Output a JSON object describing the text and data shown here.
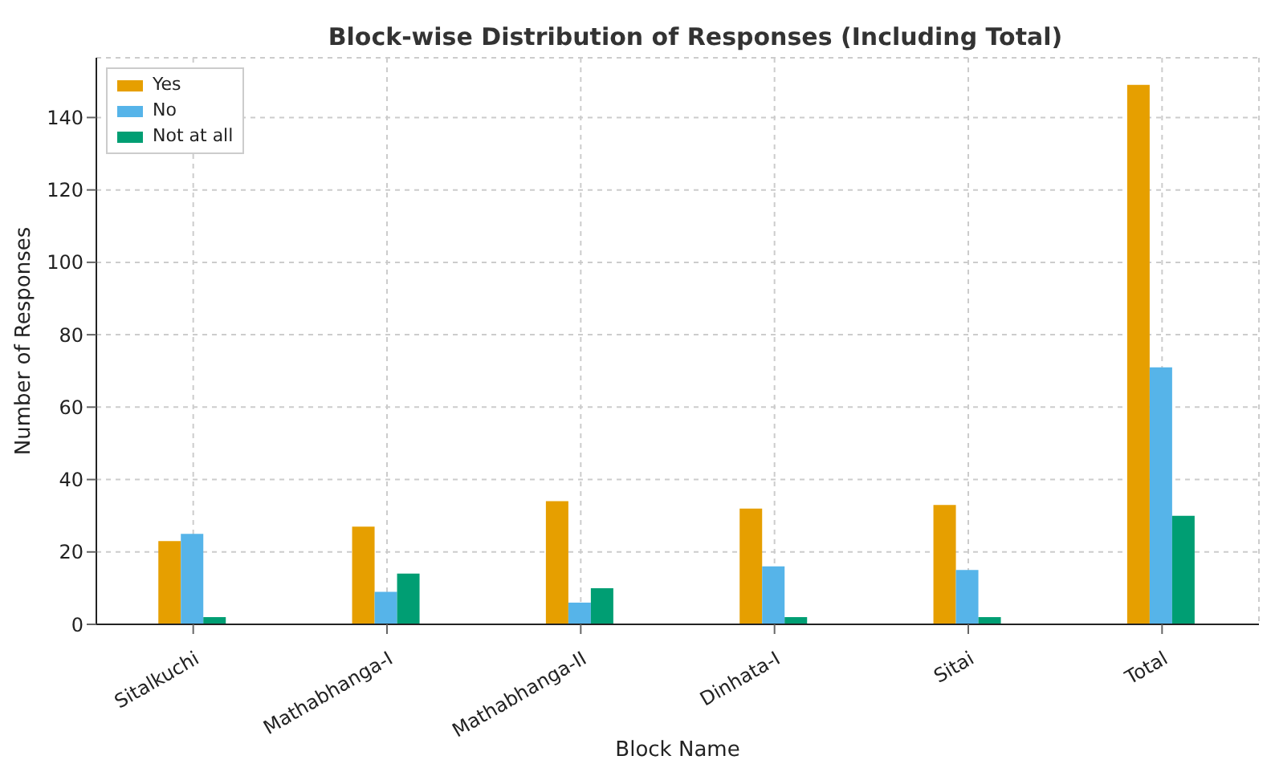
{
  "chart_data": {
    "type": "bar",
    "title": "Block-wise Distribution of Responses (Including Total)",
    "xlabel": "Block Name",
    "ylabel": "Number of Responses",
    "categories": [
      "Sitalkuchi",
      "Mathabhanga-I",
      "Mathabhanga-II",
      "Dinhata-I",
      "Sitai",
      "Total"
    ],
    "series": [
      {
        "name": "Yes",
        "color": "#e69f00",
        "values": [
          23,
          27,
          34,
          32,
          33,
          149
        ]
      },
      {
        "name": "No",
        "color": "#56b4e9",
        "values": [
          25,
          9,
          6,
          16,
          15,
          71
        ]
      },
      {
        "name": "Not at all",
        "color": "#009e73",
        "values": [
          2,
          14,
          10,
          2,
          2,
          30
        ]
      }
    ],
    "ylim": [
      0,
      156.5
    ],
    "yticks": [
      0,
      20,
      40,
      60,
      80,
      100,
      120,
      140
    ],
    "grid": true,
    "legend": "top left"
  }
}
